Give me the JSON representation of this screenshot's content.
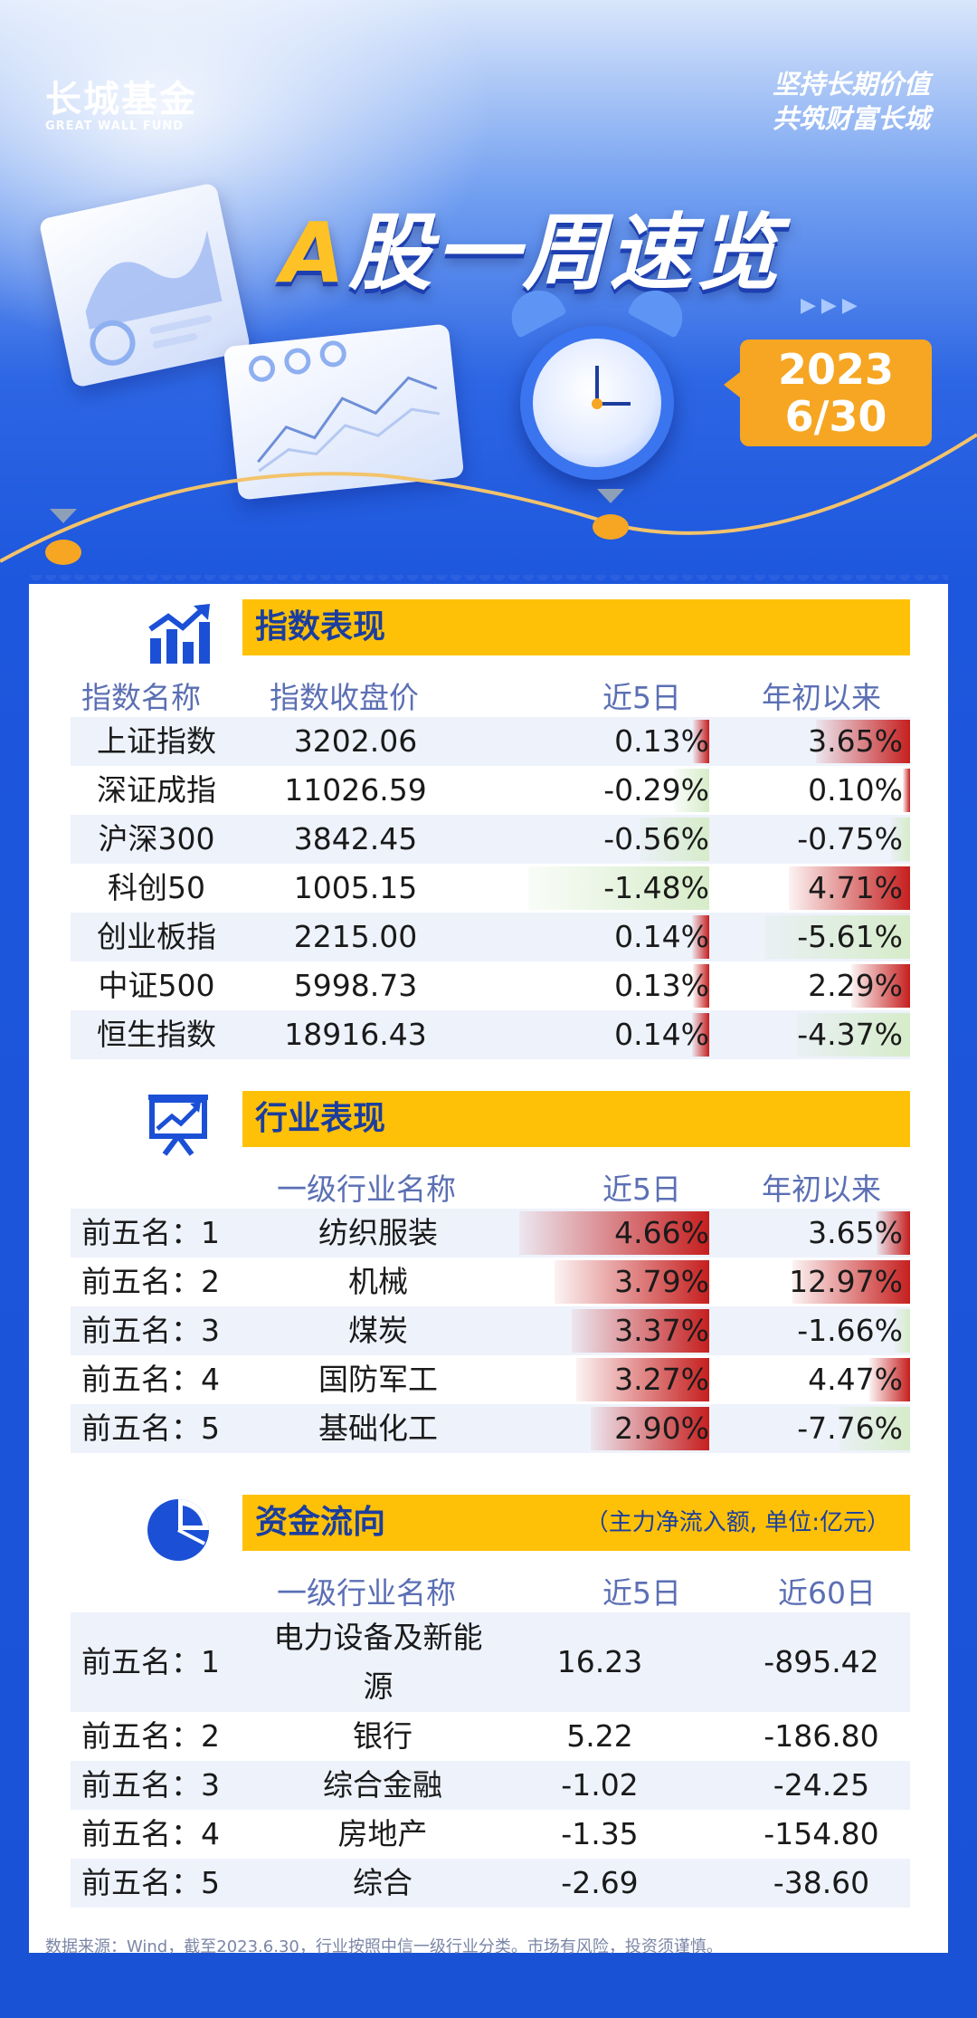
{
  "brand": {
    "name_cn": "长城基金",
    "name_en": "GREAT WALL FUND"
  },
  "slogan": [
    "坚持长期价值",
    "共筑财富长城"
  ],
  "title": {
    "prefix": "A",
    "rest": "股一周速览"
  },
  "date": {
    "year": "2023",
    "md": "6/30"
  },
  "index": {
    "section_title": "指数表现",
    "headers": [
      "指数名称",
      "指数收盘价",
      "近5日",
      "年初以来"
    ],
    "rows": [
      {
        "name": "上证指数",
        "close": "3202.06",
        "d5": "0.13%",
        "ytd": "3.65%",
        "d5_v": 0.13,
        "ytd_v": 3.65
      },
      {
        "name": "深证成指",
        "close": "11026.59",
        "d5": "-0.29%",
        "ytd": "0.10%",
        "d5_v": -0.29,
        "ytd_v": 0.1
      },
      {
        "name": "沪深300",
        "close": "3842.45",
        "d5": "-0.56%",
        "ytd": "-0.75%",
        "d5_v": -0.56,
        "ytd_v": -0.75
      },
      {
        "name": "科创50",
        "close": "1005.15",
        "d5": "-1.48%",
        "ytd": "4.71%",
        "d5_v": -1.48,
        "ytd_v": 4.71
      },
      {
        "name": "创业板指",
        "close": "2215.00",
        "d5": "0.14%",
        "ytd": "-5.61%",
        "d5_v": 0.14,
        "ytd_v": -5.61
      },
      {
        "name": "中证500",
        "close": "5998.73",
        "d5": "0.13%",
        "ytd": "2.29%",
        "d5_v": 0.13,
        "ytd_v": 2.29
      },
      {
        "name": "恒生指数",
        "close": "18916.43",
        "d5": "0.14%",
        "ytd": "-4.37%",
        "d5_v": 0.14,
        "ytd_v": -4.37
      }
    ]
  },
  "industry": {
    "section_title": "行业表现",
    "headers": [
      "一级行业名称",
      "近5日",
      "年初以来"
    ],
    "rows": [
      {
        "rank": "前五名：1",
        "name": "纺织服装",
        "d5": "4.66%",
        "ytd": "3.65%",
        "d5_v": 4.66,
        "ytd_v": 3.65
      },
      {
        "rank": "前五名：2",
        "name": "机械",
        "d5": "3.79%",
        "ytd": "12.97%",
        "d5_v": 3.79,
        "ytd_v": 12.97
      },
      {
        "rank": "前五名：3",
        "name": "煤炭",
        "d5": "3.37%",
        "ytd": "-1.66%",
        "d5_v": 3.37,
        "ytd_v": -1.66
      },
      {
        "rank": "前五名：4",
        "name": "国防军工",
        "d5": "3.27%",
        "ytd": "4.47%",
        "d5_v": 3.27,
        "ytd_v": 4.47
      },
      {
        "rank": "前五名：5",
        "name": "基础化工",
        "d5": "2.90%",
        "ytd": "-7.76%",
        "d5_v": 2.9,
        "ytd_v": -7.76
      }
    ]
  },
  "flow": {
    "section_title": "资金流向",
    "note": "（主力净流入额, 单位:亿元）",
    "headers": [
      "一级行业名称",
      "近5日",
      "近60日"
    ],
    "rows": [
      {
        "rank": "前五名：1",
        "name": "电力设备及新能源",
        "d5": "16.23",
        "d60": "-895.42"
      },
      {
        "rank": "前五名：2",
        "name": "银行",
        "d5": "5.22",
        "d60": "-186.80"
      },
      {
        "rank": "前五名：3",
        "name": "综合金融",
        "d5": "-1.02",
        "d60": "-24.25"
      },
      {
        "rank": "前五名：4",
        "name": "房地产",
        "d5": "-1.35",
        "d60": "-154.80"
      },
      {
        "rank": "前五名：5",
        "name": "综合",
        "d5": "-2.69",
        "d60": "-38.60"
      }
    ]
  },
  "footnote": "数据来源：Wind，截至2023.6.30，行业按照中信一级行业分类。市场有风险，投资须谨慎。",
  "colors": {
    "accent_yellow": "#ffc107",
    "brand_blue": "#1f5de0",
    "positive_red": "#c61f1f",
    "negative_green": "#d6ecc9",
    "badge_orange": "#f6a623"
  },
  "icons": [
    "bar-chart-icon",
    "presentation-chart-icon",
    "pie-chart-icon",
    "alarm-clock-icon"
  ]
}
